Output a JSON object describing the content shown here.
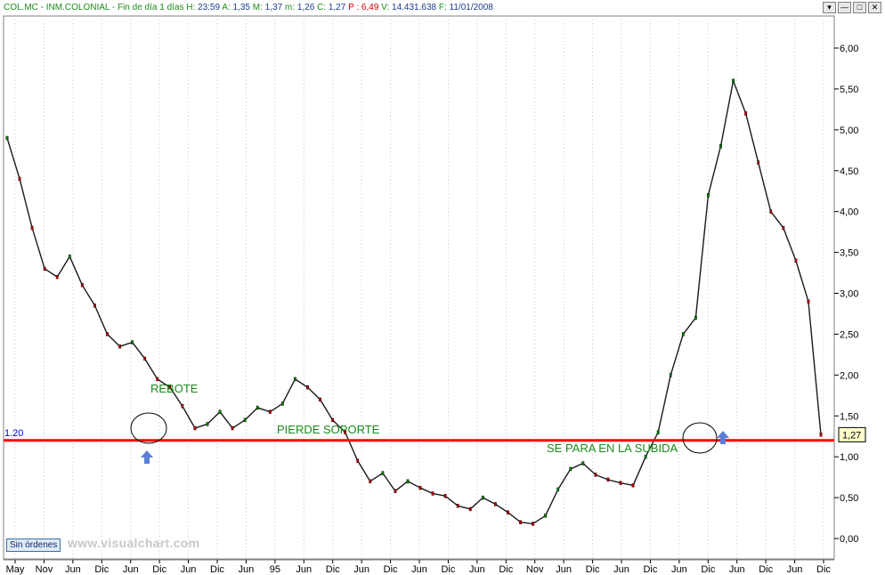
{
  "info": {
    "ticker": "COL.MC - INM.COLONIAL - Fin de día 1 días",
    "h_label": "H:",
    "h_value": "23:59",
    "a_label": "A:",
    "a_value": "1,35",
    "m_label": "M:",
    "m_value": "1,37",
    "mm_label": "m:",
    "mm_value": "1,26",
    "c_label": "C:",
    "c_value": "1,27",
    "p_label": "P :",
    "p_value": "6,49",
    "v_label": "V:",
    "v_value": "14.431.638",
    "f_label": "F:",
    "f_value": "11/01/2008"
  },
  "window_buttons": [
    "▾",
    "—",
    "□",
    "✕"
  ],
  "sin_ordenes": "Sin órdenes",
  "watermark": "www.visualchart.com",
  "colors": {
    "support_line": "#ff0000",
    "annotation_text": "#1a8a1a",
    "arrow": "#5b7fd6",
    "grid": "#c8c8c8",
    "price_label_bg": "#ffffcc",
    "candle_up": "#008000",
    "candle_down": "#c00000"
  },
  "chart_data": {
    "type": "line",
    "title": "",
    "ylim": [
      0,
      6.2
    ],
    "y_ticks": [
      "0,00",
      "0,50",
      "1,00",
      "1,50",
      "2,00",
      "2,50",
      "3,00",
      "3,50",
      "4,00",
      "4,50",
      "5,00",
      "5,50",
      "6,00"
    ],
    "x_ticks": [
      "May",
      "Nov",
      "Jun",
      "Dic",
      "Jun",
      "Dic",
      "Jun",
      "Dic",
      "Jun",
      "95",
      "Jun",
      "Dic",
      "Jun",
      "Dic",
      "Jun",
      "Dic",
      "Jun",
      "Dic",
      "Nov",
      "Jun",
      "Dic",
      "Jun",
      "Dic",
      "Jun",
      "Dic",
      "Jun",
      "Dic",
      "Jun",
      "Dic"
    ],
    "grid": true,
    "series": [
      {
        "values": [
          4.9,
          4.4,
          3.8,
          3.3,
          3.2,
          3.45,
          3.1,
          2.85,
          2.5,
          2.35,
          2.4,
          2.2,
          1.95,
          1.85,
          1.62,
          1.35,
          1.4,
          1.55,
          1.35,
          1.45,
          1.6,
          1.55,
          1.65,
          1.95,
          1.85,
          1.7,
          1.45,
          1.3,
          0.95,
          0.7,
          0.8,
          0.58,
          0.7,
          0.62,
          0.55,
          0.52,
          0.4,
          0.36,
          0.5,
          0.42,
          0.32,
          0.2,
          0.18,
          0.28,
          0.6,
          0.85,
          0.92,
          0.78,
          0.72,
          0.68,
          0.65,
          1.0,
          1.3,
          2.0,
          2.5,
          2.7,
          4.2,
          4.8,
          5.6,
          5.2,
          4.6,
          4.0,
          3.8,
          3.4,
          2.9,
          1.27
        ]
      }
    ],
    "support_level": 1.2,
    "support_label": "1.20",
    "last_value": "1,27",
    "annotations": [
      "REBOTE",
      "PIERDE SOPORTE",
      "SE PARA EN LA SUBIDA"
    ]
  }
}
